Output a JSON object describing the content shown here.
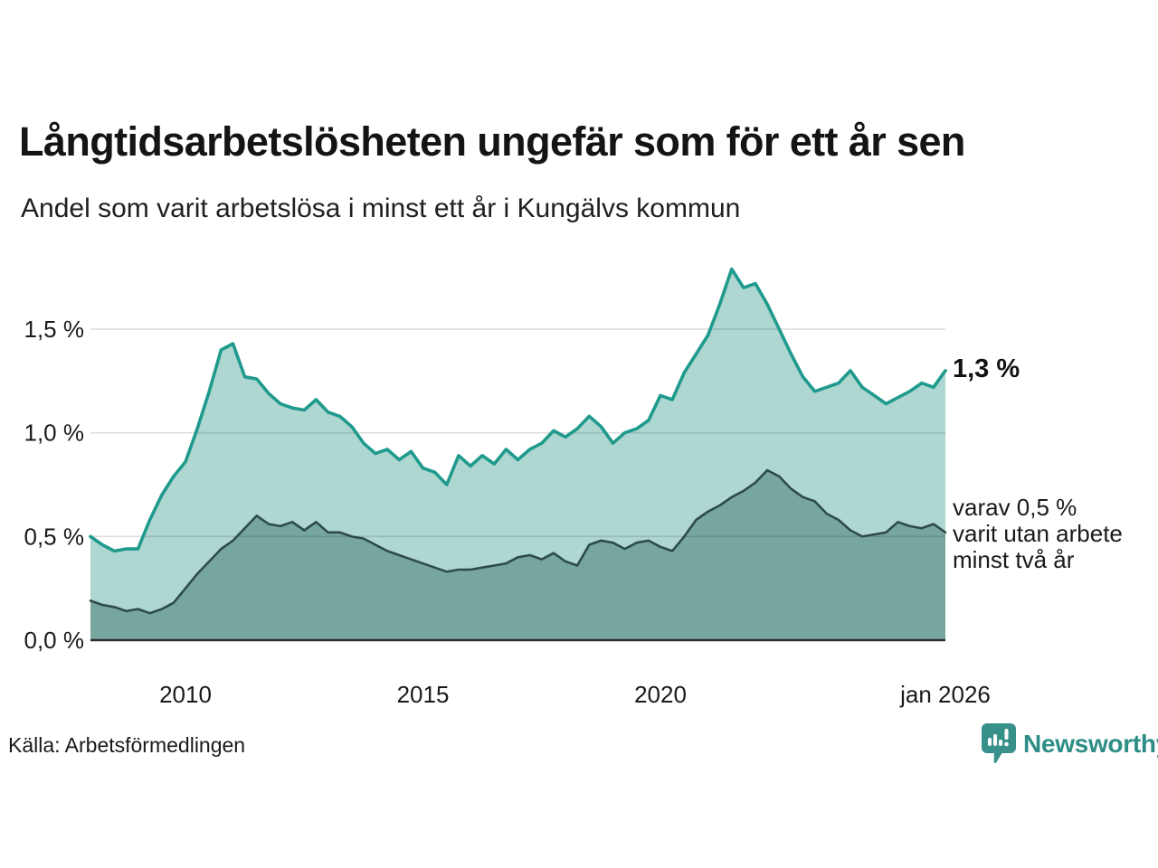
{
  "header": {
    "title": "Långtidsarbetslösheten ungefär som för ett år sen",
    "subtitle": "Andel som varit arbetslösa i minst ett år i Kungälvs kommun"
  },
  "chart_data": {
    "type": "area",
    "title": "Långtidsarbetslösheten ungefär som för ett år sen",
    "xlabel": "",
    "ylabel": "",
    "grid": "horizontal",
    "legend": "none",
    "xlim": [
      2008,
      2026
    ],
    "ylim": [
      0,
      1.84
    ],
    "x": [
      2008,
      2008.25,
      2008.5,
      2008.75,
      2009,
      2009.25,
      2009.5,
      2009.75,
      2010,
      2010.25,
      2010.5,
      2010.75,
      2011,
      2011.25,
      2011.5,
      2011.75,
      2012,
      2012.25,
      2012.5,
      2012.75,
      2013,
      2013.25,
      2013.5,
      2013.75,
      2014,
      2014.25,
      2014.5,
      2014.75,
      2015,
      2015.25,
      2015.5,
      2015.75,
      2016,
      2016.25,
      2016.5,
      2016.75,
      2017,
      2017.25,
      2017.5,
      2017.75,
      2018,
      2018.25,
      2018.5,
      2018.75,
      2019,
      2019.25,
      2019.5,
      2019.75,
      2020,
      2020.25,
      2020.5,
      2020.75,
      2021,
      2021.25,
      2021.5,
      2021.75,
      2022,
      2022.25,
      2022.5,
      2022.75,
      2023,
      2023.25,
      2023.5,
      2023.75,
      2024,
      2024.25,
      2024.5,
      2024.75,
      2025,
      2025.25,
      2025.5,
      2025.75,
      2026
    ],
    "series": [
      {
        "name": "Andel som varit arbetslösa i minst ett år",
        "line_color": "#1f9a8d",
        "fill_color": "#afd7d1",
        "end_value_pct": 1.3,
        "values": [
          0.5,
          0.46,
          0.43,
          0.44,
          0.44,
          0.58,
          0.7,
          0.79,
          0.86,
          1.02,
          1.2,
          1.4,
          1.43,
          1.27,
          1.26,
          1.19,
          1.14,
          1.12,
          1.11,
          1.16,
          1.1,
          1.08,
          1.03,
          0.95,
          0.9,
          0.92,
          0.87,
          0.91,
          0.83,
          0.81,
          0.75,
          0.89,
          0.84,
          0.89,
          0.85,
          0.92,
          0.87,
          0.92,
          0.95,
          1.01,
          0.98,
          1.02,
          1.08,
          1.03,
          0.95,
          1.0,
          1.02,
          1.06,
          1.18,
          1.16,
          1.29,
          1.38,
          1.47,
          1.62,
          1.79,
          1.7,
          1.72,
          1.62,
          1.5,
          1.38,
          1.27,
          1.2,
          1.22,
          1.24,
          1.3,
          1.22,
          1.18,
          1.14,
          1.17,
          1.2,
          1.24,
          1.22,
          1.3
        ]
      },
      {
        "name": "varav utan arbete minst två år",
        "line_color": "#2e4c47",
        "fill_color": "#77a69f",
        "end_value_pct": 0.5,
        "values": [
          0.19,
          0.17,
          0.16,
          0.14,
          0.15,
          0.13,
          0.15,
          0.18,
          0.25,
          0.32,
          0.38,
          0.44,
          0.48,
          0.54,
          0.6,
          0.56,
          0.55,
          0.57,
          0.53,
          0.57,
          0.52,
          0.52,
          0.5,
          0.49,
          0.46,
          0.43,
          0.41,
          0.39,
          0.37,
          0.35,
          0.33,
          0.34,
          0.34,
          0.35,
          0.36,
          0.37,
          0.4,
          0.41,
          0.39,
          0.42,
          0.38,
          0.36,
          0.46,
          0.48,
          0.47,
          0.44,
          0.47,
          0.48,
          0.45,
          0.43,
          0.5,
          0.58,
          0.62,
          0.65,
          0.69,
          0.72,
          0.76,
          0.82,
          0.79,
          0.73,
          0.69,
          0.67,
          0.61,
          0.58,
          0.53,
          0.5,
          0.51,
          0.52,
          0.57,
          0.55,
          0.54,
          0.56,
          0.52
        ]
      }
    ],
    "x_ticks": [
      {
        "label": "2010",
        "value": 2010
      },
      {
        "label": "2015",
        "value": 2015
      },
      {
        "label": "2020",
        "value": 2020
      },
      {
        "label": "jan 2026",
        "value": 2026
      }
    ],
    "y_ticks": [
      {
        "label": "0,0 %",
        "value": 0
      },
      {
        "label": "0,5 %",
        "value": 0.5
      },
      {
        "label": "1,0 %",
        "value": 1.0
      },
      {
        "label": "1,5 %",
        "value": 1.5
      }
    ]
  },
  "annotations": {
    "end_value_label": "1,3 %",
    "secondary_lines": [
      "varav 0,5 %",
      "varit utan arbete",
      "minst två år"
    ]
  },
  "footer": {
    "source": "Källa: Arbetsförmedlingen",
    "brand": "Newsworthy"
  },
  "colors": {
    "accent_teal": "#1f9a8d",
    "fill_light": "#afd7d1",
    "fill_dark": "#77a69f",
    "line_dark": "#2e4c47",
    "brand_teal": "#37918a",
    "grid": "#d9dcdb",
    "axis_baseline": "#2e2e2e",
    "text": "#1a1a1a"
  }
}
